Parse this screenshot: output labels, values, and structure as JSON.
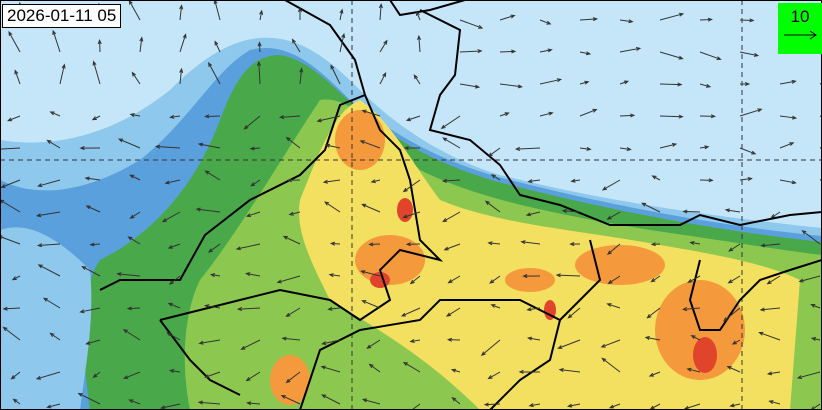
{
  "map": {
    "timestamp": "2026-01-11 05",
    "wind_legend": {
      "value": "10",
      "icon": "arrow-right-icon",
      "background": "#00ff00"
    },
    "colors": {
      "sea_light": "#c5e6f8",
      "blue_light": "#8ec8ec",
      "blue_mid": "#5aa0dc",
      "green": "#49a84a",
      "green_light": "#8cc850",
      "yellow": "#f3e060",
      "orange": "#f59a3c",
      "red": "#e0442a"
    }
  }
}
